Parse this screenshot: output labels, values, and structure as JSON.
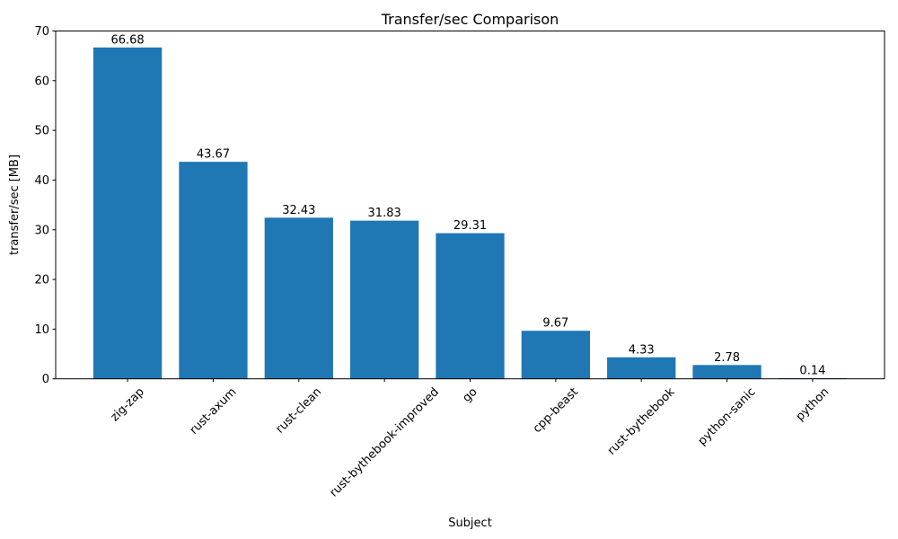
{
  "chart_data": {
    "type": "bar",
    "title": "Transfer/sec Comparison",
    "xlabel": "Subject",
    "ylabel": "transfer/sec [MB]",
    "categories": [
      "zig-zap",
      "rust-axum",
      "rust-clean",
      "rust-bythebook-improved",
      "go",
      "cpp-beast",
      "rust-bythebook",
      "python-sanic",
      "python"
    ],
    "values": [
      66.68,
      43.67,
      32.43,
      31.83,
      29.31,
      9.67,
      4.33,
      2.78,
      0.14
    ],
    "value_labels": [
      "66.68",
      "43.67",
      "32.43",
      "31.83",
      "29.31",
      "9.67",
      "4.33",
      "2.78",
      "0.14"
    ],
    "ylim": [
      0,
      70
    ],
    "yticks": [
      0,
      10,
      20,
      30,
      40,
      50,
      60,
      70
    ],
    "ytick_labels": [
      "0",
      "10",
      "20",
      "30",
      "40",
      "50",
      "60",
      "70"
    ],
    "bar_color": "#1f77b4",
    "text_color": "#000000",
    "grid": false,
    "legend": null
  }
}
